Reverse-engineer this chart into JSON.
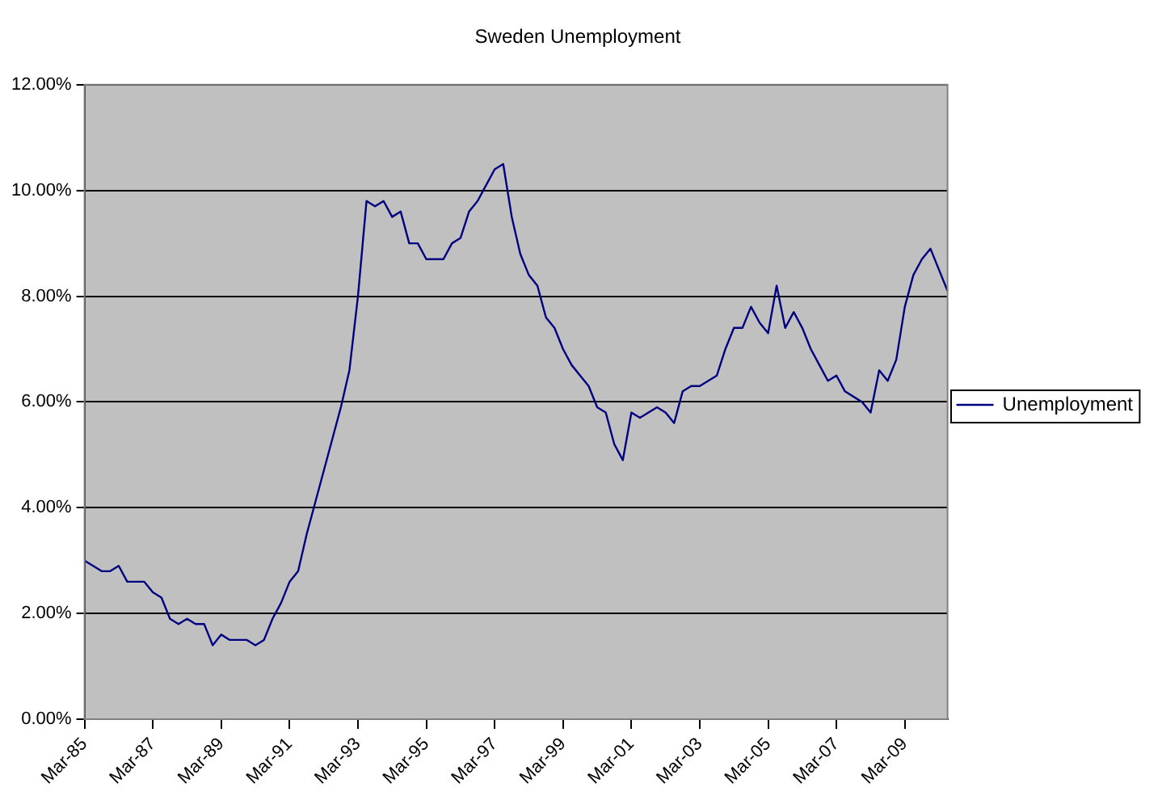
{
  "chart_data": {
    "type": "line",
    "title": "Sweden Unemployment",
    "categories": [
      "Mar-85",
      null,
      null,
      null,
      null,
      null,
      null,
      null,
      "Mar-87",
      null,
      null,
      null,
      null,
      null,
      null,
      null,
      "Mar-89",
      null,
      null,
      null,
      null,
      null,
      null,
      null,
      "Mar-91",
      null,
      null,
      null,
      null,
      null,
      null,
      null,
      "Mar-93",
      null,
      null,
      null,
      null,
      null,
      null,
      null,
      "Mar-95",
      null,
      null,
      null,
      null,
      null,
      null,
      null,
      "Mar-97",
      null,
      null,
      null,
      null,
      null,
      null,
      null,
      "Mar-99",
      null,
      null,
      null,
      null,
      null,
      null,
      null,
      "Mar-01",
      null,
      null,
      null,
      null,
      null,
      null,
      null,
      "Mar-03",
      null,
      null,
      null,
      null,
      null,
      null,
      null,
      "Mar-05",
      null,
      null,
      null,
      null,
      null,
      null,
      null,
      "Mar-07",
      null,
      null,
      null,
      null,
      null,
      null,
      null,
      "Mar-09",
      null,
      null,
      null,
      null,
      null
    ],
    "series": [
      {
        "name": "Unemployment",
        "color": "#000080",
        "values": [
          3.0,
          2.9,
          2.8,
          2.8,
          2.9,
          2.6,
          2.6,
          2.6,
          2.4,
          2.3,
          1.9,
          1.8,
          1.9,
          1.8,
          1.8,
          1.4,
          1.6,
          1.5,
          1.5,
          1.5,
          1.4,
          1.5,
          1.9,
          2.2,
          2.6,
          2.8,
          3.5,
          4.1,
          4.7,
          5.3,
          5.9,
          6.6,
          8.0,
          9.8,
          9.7,
          9.8,
          9.5,
          9.6,
          9.0,
          9.0,
          8.7,
          8.7,
          8.7,
          9.0,
          9.1,
          9.6,
          9.8,
          10.1,
          10.4,
          10.5,
          9.5,
          8.8,
          8.4,
          8.2,
          7.6,
          7.4,
          7.0,
          6.7,
          6.5,
          6.3,
          5.9,
          5.8,
          5.2,
          4.9,
          5.8,
          5.7,
          5.8,
          5.9,
          5.8,
          5.6,
          6.2,
          6.3,
          6.3,
          6.4,
          6.5,
          7.0,
          7.4,
          7.4,
          7.8,
          7.5,
          7.3,
          8.2,
          7.4,
          7.7,
          7.4,
          7.0,
          6.7,
          6.4,
          6.5,
          6.2,
          6.1,
          6.0,
          5.8,
          6.6,
          6.4,
          6.8,
          7.8,
          8.4,
          8.7,
          8.9,
          8.5,
          8.1
        ]
      }
    ],
    "ylim": [
      0,
      12
    ],
    "yticks": [
      {
        "value": 0,
        "label": "0.00%"
      },
      {
        "value": 2,
        "label": "2.00%"
      },
      {
        "value": 4,
        "label": "4.00%"
      },
      {
        "value": 6,
        "label": "6.00%"
      },
      {
        "value": 8,
        "label": "8.00%"
      },
      {
        "value": 10,
        "label": "10.00%"
      },
      {
        "value": 12,
        "label": "12.00%"
      }
    ],
    "grid": "y",
    "legend": "right",
    "marker": "none",
    "line_style": "solid"
  }
}
